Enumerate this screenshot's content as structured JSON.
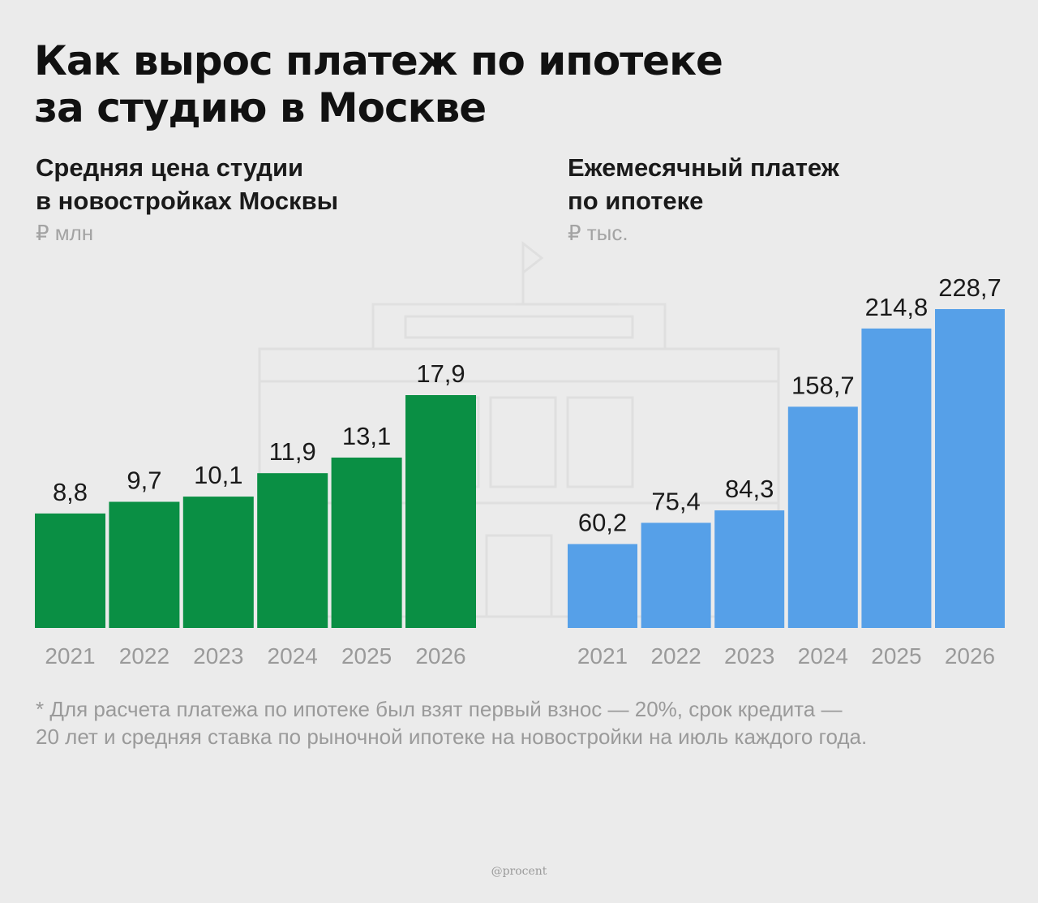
{
  "title_lines": [
    "Как вырос платеж по ипотеке",
    "за студию в Москве"
  ],
  "colors": {
    "green": "#0a8f44",
    "blue": "#56a0e8",
    "label": "#1a1a1a",
    "tick": "#9a9a9a"
  },
  "chart_data": [
    {
      "type": "bar",
      "title_lines": [
        "Средняя цена студии",
        "в новостройках Москвы"
      ],
      "unit": "₽ млн",
      "categories": [
        "2021",
        "2022",
        "2023",
        "2024",
        "2025",
        "2026"
      ],
      "values": [
        8.8,
        9.7,
        10.1,
        11.9,
        13.1,
        17.9
      ],
      "value_labels": [
        "8,8",
        "9,7",
        "10,1",
        "11,9",
        "13,1",
        "17,9"
      ],
      "ylim": [
        0,
        17.9
      ],
      "grid": false,
      "color": "#0a8f44"
    },
    {
      "type": "bar",
      "title_lines": [
        "Ежемесячный платеж",
        "по ипотеке"
      ],
      "unit": "₽ тыс.",
      "categories": [
        "2021",
        "2022",
        "2023",
        "2024",
        "2025",
        "2026"
      ],
      "values": [
        60.2,
        75.4,
        84.3,
        158.7,
        214.8,
        228.7
      ],
      "value_labels": [
        "60,2",
        "75,4",
        "84,3",
        "158,7",
        "214,8",
        "228,7"
      ],
      "ylim": [
        0,
        228.7
      ],
      "grid": false,
      "color": "#56a0e8"
    }
  ],
  "footnote_lines": [
    "* Для расчета платежа по ипотеке был взят первый взнос — 20%, срок кредита —",
    "20 лет и средняя ставка по рыночной ипотеке на новостройки на июль каждого года."
  ],
  "credit": "@procent"
}
